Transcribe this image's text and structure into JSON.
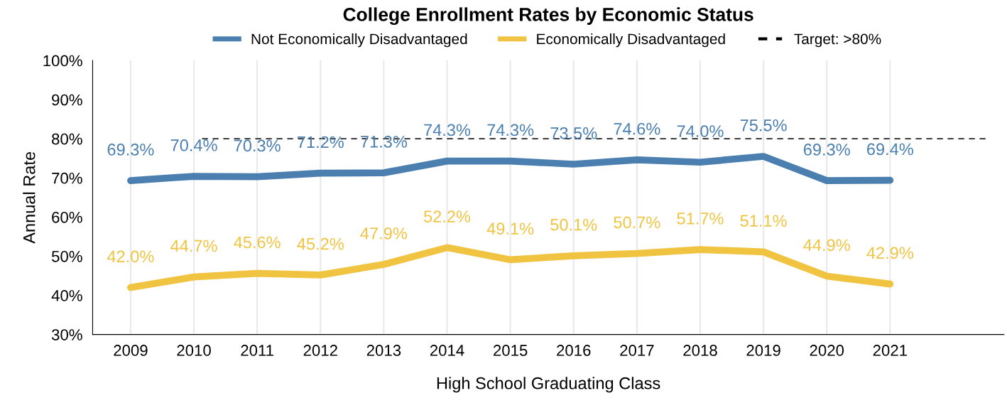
{
  "chart_data": {
    "type": "line",
    "title": "College Enrollment Rates by Economic Status",
    "xlabel": "High School Graduating Class",
    "ylabel": "Annual Rate",
    "categories": [
      "2009",
      "2010",
      "2011",
      "2012",
      "2013",
      "2014",
      "2015",
      "2016",
      "2017",
      "2018",
      "2019",
      "2020",
      "2021"
    ],
    "series": [
      {
        "name": "Not Economically Disadvantaged",
        "color": "#4a7fb0",
        "values": [
          69.3,
          70.4,
          70.3,
          71.2,
          71.3,
          74.3,
          74.3,
          73.5,
          74.6,
          74.0,
          75.5,
          69.3,
          69.4
        ],
        "value_labels": [
          "69.3%",
          "70.4%",
          "70.3%",
          "71.2%",
          "71.3%",
          "74.3%",
          "74.3%",
          "73.5%",
          "74.6%",
          "74.0%",
          "75.5%",
          "69.3%",
          "69.4%"
        ]
      },
      {
        "name": "Economically Disadvantaged",
        "color": "#f0c340",
        "values": [
          42.0,
          44.7,
          45.6,
          45.2,
          47.9,
          52.2,
          49.1,
          50.1,
          50.7,
          51.7,
          51.1,
          44.9,
          42.9
        ],
        "value_labels": [
          "42.0%",
          "44.7%",
          "45.6%",
          "45.2%",
          "47.9%",
          "52.2%",
          "49.1%",
          "50.1%",
          "50.7%",
          "51.7%",
          "51.1%",
          "44.9%",
          "42.9%"
        ]
      }
    ],
    "ref_lines": [
      {
        "axis": "y",
        "value": 80,
        "label": "Target: >80%",
        "color": "#000000",
        "line_style": "dashed"
      }
    ],
    "ylim": [
      30,
      100
    ],
    "yticks": [
      {
        "value": 30,
        "label": "30%"
      },
      {
        "value": 40,
        "label": "40%"
      },
      {
        "value": 50,
        "label": "50%"
      },
      {
        "value": 60,
        "label": "60%"
      },
      {
        "value": 70,
        "label": "70%"
      },
      {
        "value": 80,
        "label": "80%"
      },
      {
        "value": 90,
        "label": "90%"
      },
      {
        "value": 100,
        "label": "100%"
      }
    ],
    "grid": "x",
    "legend": "top",
    "marker": "none",
    "line_style": "solid"
  }
}
